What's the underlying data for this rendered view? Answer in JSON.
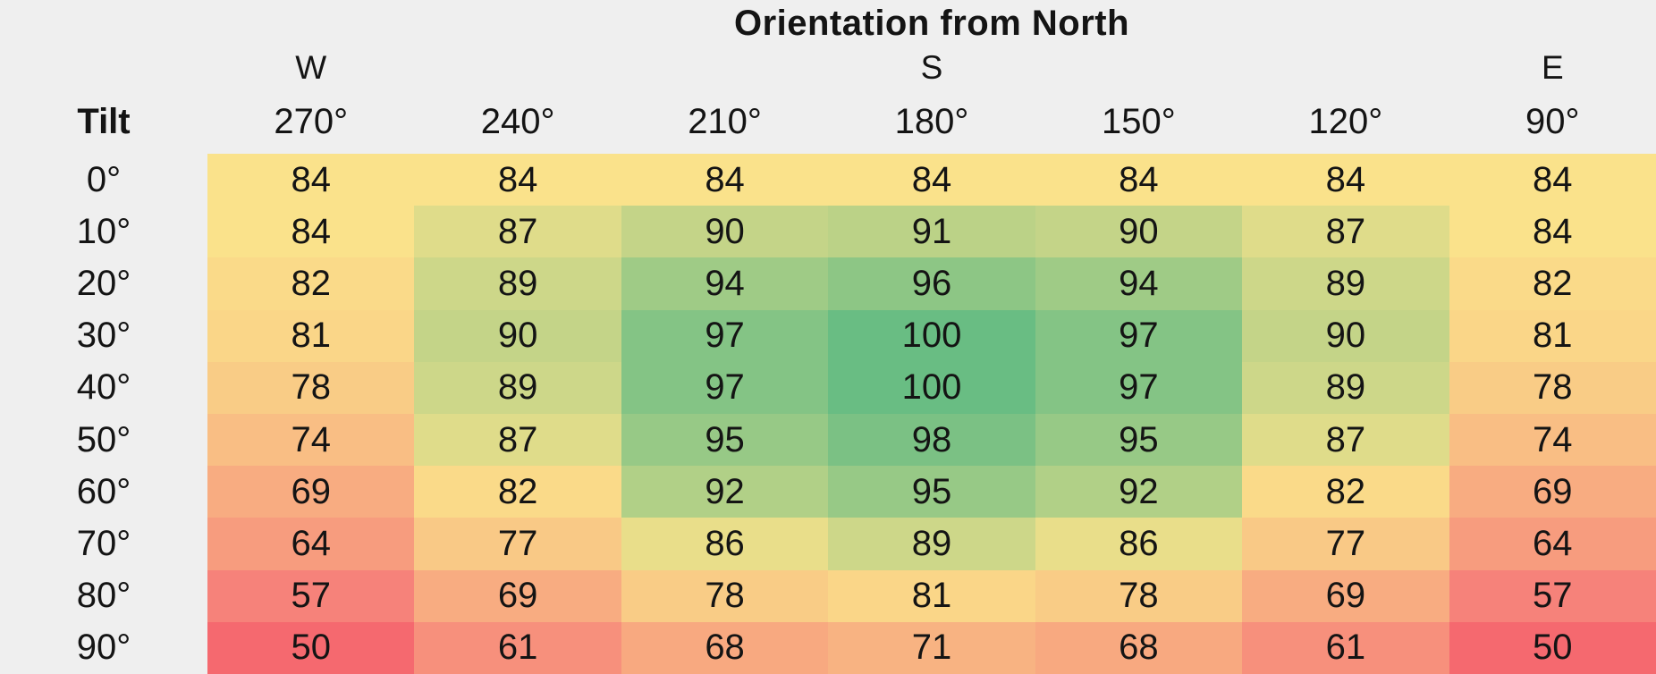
{
  "title": "Orientation from North",
  "corner_label": "Tilt",
  "compass_labels": [
    "W",
    "",
    "",
    "S",
    "",
    "",
    "E"
  ],
  "columns": [
    "270°",
    "240°",
    "210°",
    "180°",
    "150°",
    "120°",
    "90°"
  ],
  "rows": [
    {
      "tilt": "0°",
      "values": [
        84,
        84,
        84,
        84,
        84,
        84,
        84
      ]
    },
    {
      "tilt": "10°",
      "values": [
        84,
        87,
        90,
        91,
        90,
        87,
        84
      ]
    },
    {
      "tilt": "20°",
      "values": [
        82,
        89,
        94,
        96,
        94,
        89,
        82
      ]
    },
    {
      "tilt": "30°",
      "values": [
        81,
        90,
        97,
        100,
        97,
        90,
        81
      ]
    },
    {
      "tilt": "40°",
      "values": [
        78,
        89,
        97,
        100,
        97,
        89,
        78
      ]
    },
    {
      "tilt": "50°",
      "values": [
        74,
        87,
        95,
        98,
        95,
        87,
        74
      ]
    },
    {
      "tilt": "60°",
      "values": [
        69,
        82,
        92,
        95,
        92,
        82,
        69
      ]
    },
    {
      "tilt": "70°",
      "values": [
        64,
        77,
        86,
        89,
        86,
        77,
        64
      ]
    },
    {
      "tilt": "80°",
      "values": [
        57,
        69,
        78,
        81,
        78,
        69,
        57
      ]
    },
    {
      "tilt": "90°",
      "values": [
        50,
        61,
        68,
        71,
        68,
        61,
        50
      ]
    }
  ],
  "colors": {
    "background": "#EFEFEF",
    "text": "#141414",
    "scale_low": "#F5696F",
    "scale_mid": "#FAE28B",
    "scale_high": "#69BD83",
    "palette": {
      "50": "#F5696F",
      "57": "#F6827A",
      "61": "#F7907C",
      "64": "#F79C7E",
      "68": "#F8A980",
      "69": "#F8AC81",
      "71": "#F8B382",
      "74": "#F9BE84",
      "77": "#F9C986",
      "78": "#F9CC86",
      "81": "#FAD688",
      "82": "#FADA89",
      "84": "#FAE28B",
      "86": "#E9DE8A",
      "87": "#DFDC8A",
      "89": "#CDD789",
      "90": "#C4D488",
      "91": "#BBD287",
      "92": "#B1D087",
      "94": "#9FCB86",
      "95": "#97C986",
      "96": "#8DC685",
      "97": "#84C485",
      "98": "#7BC184",
      "100": "#69BD83"
    }
  },
  "chart_data": {
    "type": "heatmap",
    "title": "Orientation from North",
    "xlabel": "Orientation from North",
    "ylabel": "Tilt",
    "x_categories": [
      "270° (W)",
      "240°",
      "210°",
      "180° (S)",
      "150°",
      "120°",
      "90° (E)"
    ],
    "y_categories": [
      "0°",
      "10°",
      "20°",
      "30°",
      "40°",
      "50°",
      "60°",
      "70°",
      "80°",
      "90°"
    ],
    "values": [
      [
        84,
        84,
        84,
        84,
        84,
        84,
        84
      ],
      [
        84,
        87,
        90,
        91,
        90,
        87,
        84
      ],
      [
        82,
        89,
        94,
        96,
        94,
        89,
        82
      ],
      [
        81,
        90,
        97,
        100,
        97,
        90,
        81
      ],
      [
        78,
        89,
        97,
        100,
        97,
        89,
        78
      ],
      [
        74,
        87,
        95,
        98,
        95,
        87,
        74
      ],
      [
        69,
        82,
        92,
        95,
        92,
        82,
        69
      ],
      [
        64,
        77,
        86,
        89,
        86,
        77,
        64
      ],
      [
        57,
        69,
        78,
        81,
        78,
        69,
        57
      ],
      [
        50,
        61,
        68,
        71,
        68,
        61,
        50
      ]
    ],
    "value_range": [
      50,
      100
    ],
    "legend_position": "none",
    "grid": false,
    "color_scale": "red (low) → yellow (mid ≈84) → green (high)"
  }
}
